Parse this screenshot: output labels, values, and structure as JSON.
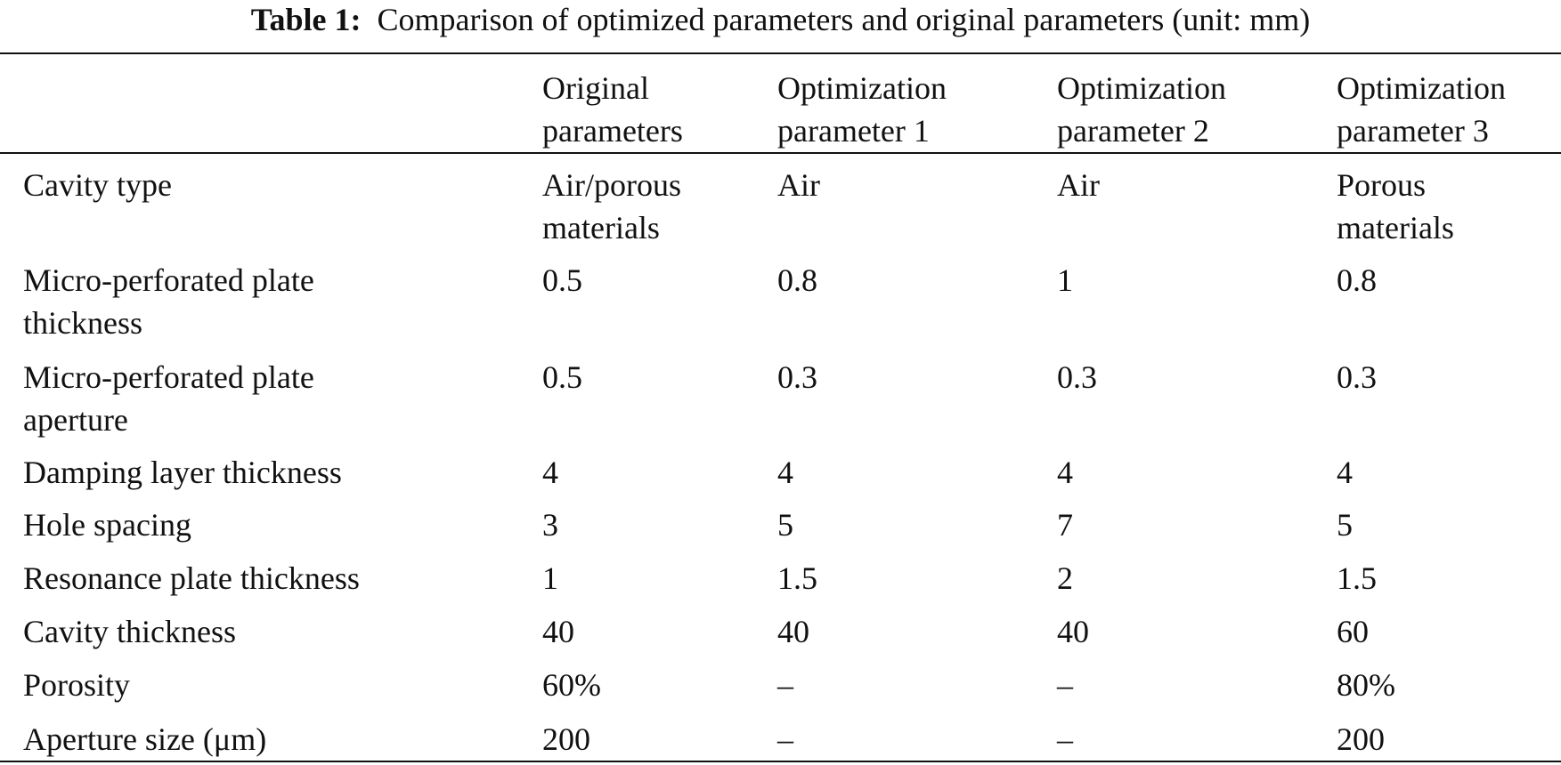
{
  "caption": {
    "label": "Table 1:",
    "text": "Comparison of optimized parameters and original parameters (unit: mm)"
  },
  "table": {
    "columns": [
      "",
      "Original\nparameters",
      "Optimization\nparameter 1",
      "Optimization\nparameter 2",
      "Optimization\nparameter 3"
    ],
    "rows": [
      [
        "Cavity type",
        "Air/porous\nmaterials",
        "Air",
        "Air",
        "Porous\nmaterials"
      ],
      [
        "Micro-perforated plate\nthickness",
        "0.5",
        "0.8",
        "1",
        "0.8"
      ],
      [
        "Micro-perforated plate\naperture",
        "0.5",
        "0.3",
        "0.3",
        "0.3"
      ],
      [
        "Damping layer thickness",
        "4",
        "4",
        "4",
        "4"
      ],
      [
        "Hole spacing",
        "3",
        "5",
        "7",
        "5"
      ],
      [
        "Resonance plate thickness",
        "1",
        "1.5",
        "2",
        "1.5"
      ],
      [
        "Cavity thickness",
        "40",
        "40",
        "40",
        "60"
      ],
      [
        "Porosity",
        "60%",
        "–",
        "–",
        "80%"
      ],
      [
        "Aperture size (μm)",
        "200",
        "–",
        "–",
        "200"
      ]
    ]
  }
}
